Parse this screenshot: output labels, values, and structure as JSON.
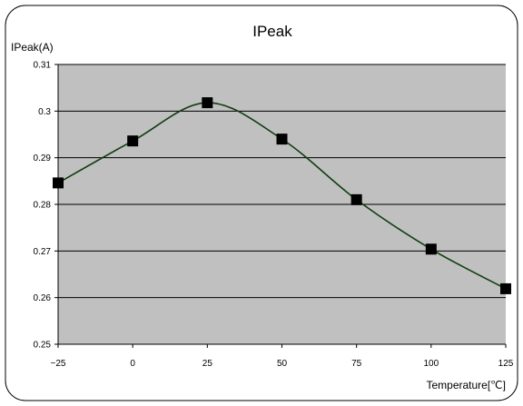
{
  "chart_data": {
    "type": "line",
    "title": "IPeak",
    "ylabel": "IPeak(A)",
    "xlabel": "Temperature[℃]",
    "x": [
      -25,
      0,
      25,
      50,
      75,
      100,
      125
    ],
    "x_ticks": [
      "−25",
      "0",
      "25",
      "50",
      "75",
      "100",
      "125"
    ],
    "xlim": [
      -25,
      125
    ],
    "ylim": [
      0.25,
      0.31
    ],
    "y_ticks": [
      "0.25",
      "0.26",
      "0.27",
      "0.28",
      "0.29",
      "0.3",
      "0.31"
    ],
    "grid": "horizontal",
    "series": [
      {
        "values": [
          0.2846,
          0.2936,
          0.3018,
          0.294,
          0.281,
          0.2704,
          0.2619
        ]
      }
    ],
    "colors": {
      "plot_background": "#c0c0c0",
      "line": "#0f3d0f",
      "marker": "#000000",
      "frame": "#000000"
    }
  }
}
